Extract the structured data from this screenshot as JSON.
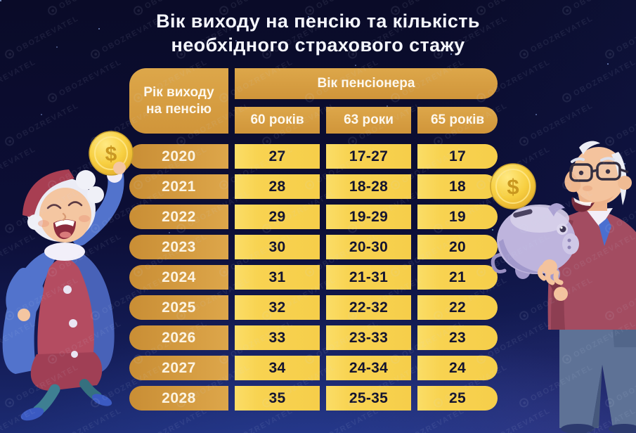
{
  "title": {
    "line1": "Вік виходу на пенсію та кількість",
    "line2": "необхідного страхового стажу"
  },
  "watermark": {
    "brand": "OBOZREVATEL"
  },
  "table": {
    "row_group_header_line1": "Рік виходу",
    "row_group_header_line2": "на пенсію",
    "col_group_header": "Вік пенсіонера",
    "col_headers": [
      "60 років",
      "63 роки",
      "65 років"
    ],
    "rows": [
      {
        "year": "2020",
        "values": [
          "27",
          "17-27",
          "17"
        ]
      },
      {
        "year": "2021",
        "values": [
          "28",
          "18-28",
          "18"
        ]
      },
      {
        "year": "2022",
        "values": [
          "29",
          "19-29",
          "19"
        ]
      },
      {
        "year": "2023",
        "values": [
          "30",
          "20-30",
          "20"
        ]
      },
      {
        "year": "2024",
        "values": [
          "31",
          "21-31",
          "21"
        ]
      },
      {
        "year": "2025",
        "values": [
          "32",
          "22-32",
          "22"
        ]
      },
      {
        "year": "2026",
        "values": [
          "33",
          "23-33",
          "23"
        ]
      },
      {
        "year": "2027",
        "values": [
          "34",
          "24-34",
          "24"
        ]
      },
      {
        "year": "2028",
        "values": [
          "35",
          "25-35",
          "25"
        ]
      }
    ]
  },
  "illustrations": {
    "left_character": "elderly-woman-raising-gold-coin",
    "right_character": "elderly-man-with-glasses-holding-piggy-bank",
    "coin_symbol": "$"
  },
  "colors": {
    "background_top": "#0a0b28",
    "background_bottom": "#1c2b72",
    "header_gold": "#d99e42",
    "cell_yellow": "#f8d24f",
    "title_text": "#f4f6fd",
    "cell_text": "#14142f",
    "header_text": "#fdf8ee"
  },
  "chart_data": {
    "type": "table",
    "title": "Вік виходу на пенсію та кількість необхідного страхового стажу",
    "column_group": "Вік пенсіонера",
    "columns": [
      "Рік виходу на пенсію",
      "60 років",
      "63 роки",
      "65 років"
    ],
    "rows": [
      [
        "2020",
        "27",
        "17-27",
        "17"
      ],
      [
        "2021",
        "28",
        "18-28",
        "18"
      ],
      [
        "2022",
        "29",
        "19-29",
        "19"
      ],
      [
        "2023",
        "30",
        "20-30",
        "20"
      ],
      [
        "2024",
        "31",
        "21-31",
        "21"
      ],
      [
        "2025",
        "32",
        "22-32",
        "22"
      ],
      [
        "2026",
        "33",
        "23-33",
        "23"
      ],
      [
        "2027",
        "34",
        "24-34",
        "24"
      ],
      [
        "2028",
        "35",
        "25-35",
        "25"
      ]
    ]
  }
}
